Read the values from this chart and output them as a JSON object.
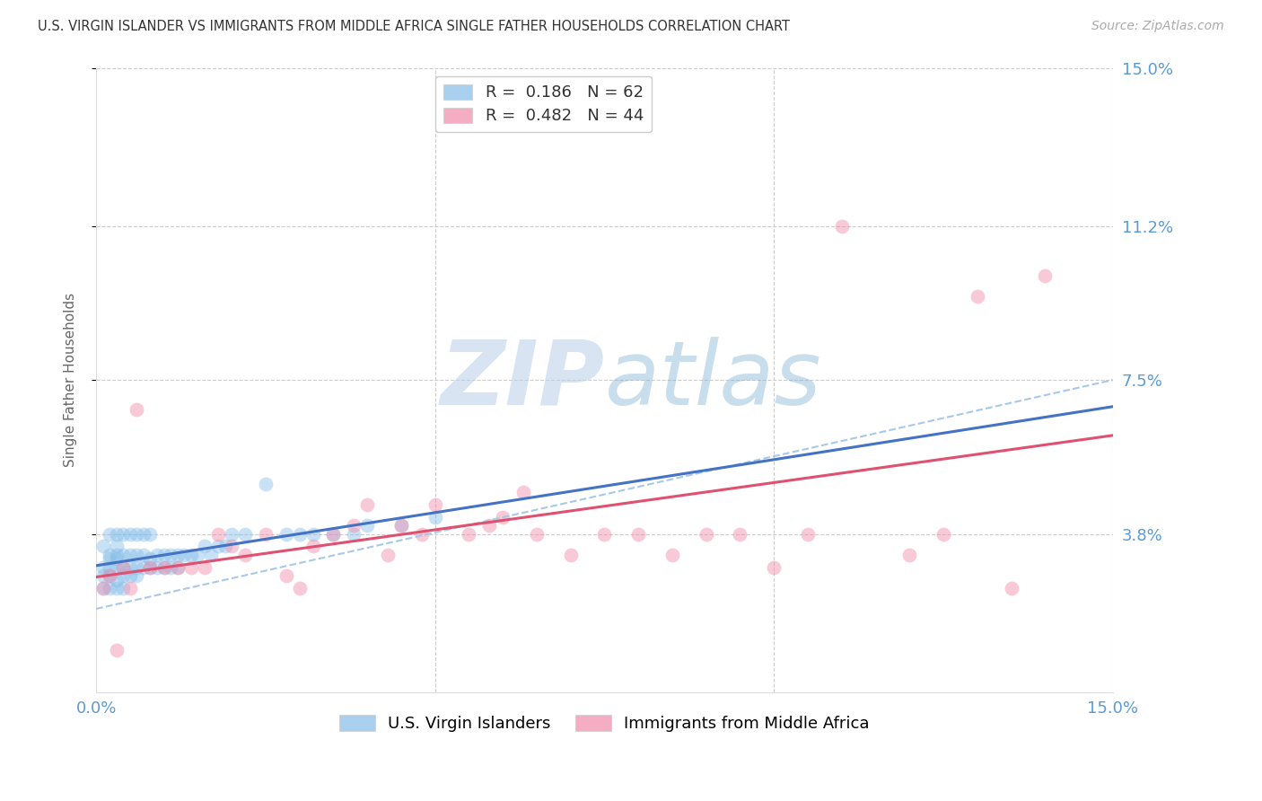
{
  "title": "U.S. VIRGIN ISLANDER VS IMMIGRANTS FROM MIDDLE AFRICA SINGLE FATHER HOUSEHOLDS CORRELATION CHART",
  "source": "Source: ZipAtlas.com",
  "ylabel": "Single Father Households",
  "xlim": [
    0.0,
    0.15
  ],
  "ylim": [
    0.0,
    0.15
  ],
  "ytick_labels_right": [
    "15.0%",
    "11.2%",
    "7.5%",
    "3.8%"
  ],
  "ytick_positions_right": [
    0.15,
    0.112,
    0.075,
    0.038
  ],
  "series1_name": "U.S. Virgin Islanders",
  "series2_name": "Immigrants from Middle Africa",
  "series1_color": "#85bde8",
  "series2_color": "#f08baa",
  "series1_line_color": "#4472c4",
  "series2_line_color": "#e05070",
  "series1_dash_color": "#a8c8e8",
  "series1_R": 0.186,
  "series1_N": 62,
  "series2_R": 0.482,
  "series2_N": 44,
  "watermark_zip": "ZIP",
  "watermark_atlas": "atlas",
  "background_color": "#ffffff",
  "grid_color": "#cccccc",
  "right_tick_color": "#5b9bd5",
  "bottom_tick_color": "#5b9bd5",
  "series1_x": [
    0.001,
    0.001,
    0.001,
    0.001,
    0.002,
    0.002,
    0.002,
    0.002,
    0.002,
    0.002,
    0.003,
    0.003,
    0.003,
    0.003,
    0.003,
    0.003,
    0.003,
    0.004,
    0.004,
    0.004,
    0.004,
    0.004,
    0.005,
    0.005,
    0.005,
    0.005,
    0.006,
    0.006,
    0.006,
    0.006,
    0.007,
    0.007,
    0.007,
    0.008,
    0.008,
    0.008,
    0.009,
    0.009,
    0.01,
    0.01,
    0.011,
    0.011,
    0.012,
    0.012,
    0.013,
    0.014,
    0.015,
    0.016,
    0.017,
    0.018,
    0.019,
    0.02,
    0.022,
    0.025,
    0.028,
    0.03,
    0.032,
    0.035,
    0.038,
    0.04,
    0.045,
    0.05
  ],
  "series1_y": [
    0.025,
    0.028,
    0.03,
    0.035,
    0.025,
    0.028,
    0.03,
    0.032,
    0.033,
    0.038,
    0.025,
    0.027,
    0.03,
    0.032,
    0.033,
    0.035,
    0.038,
    0.025,
    0.028,
    0.03,
    0.033,
    0.038,
    0.028,
    0.03,
    0.033,
    0.038,
    0.028,
    0.03,
    0.033,
    0.038,
    0.03,
    0.033,
    0.038,
    0.03,
    0.032,
    0.038,
    0.03,
    0.033,
    0.03,
    0.033,
    0.03,
    0.033,
    0.03,
    0.033,
    0.033,
    0.033,
    0.033,
    0.035,
    0.033,
    0.035,
    0.035,
    0.038,
    0.038,
    0.05,
    0.038,
    0.038,
    0.038,
    0.038,
    0.038,
    0.04,
    0.04,
    0.042
  ],
  "series2_x": [
    0.001,
    0.002,
    0.003,
    0.004,
    0.005,
    0.006,
    0.008,
    0.01,
    0.012,
    0.014,
    0.016,
    0.018,
    0.02,
    0.022,
    0.025,
    0.028,
    0.03,
    0.032,
    0.035,
    0.038,
    0.04,
    0.043,
    0.045,
    0.048,
    0.05,
    0.055,
    0.058,
    0.06,
    0.063,
    0.065,
    0.07,
    0.075,
    0.08,
    0.085,
    0.09,
    0.095,
    0.1,
    0.105,
    0.11,
    0.12,
    0.125,
    0.13,
    0.135,
    0.14
  ],
  "series2_y": [
    0.025,
    0.028,
    0.01,
    0.03,
    0.025,
    0.068,
    0.03,
    0.03,
    0.03,
    0.03,
    0.03,
    0.038,
    0.035,
    0.033,
    0.038,
    0.028,
    0.025,
    0.035,
    0.038,
    0.04,
    0.045,
    0.033,
    0.04,
    0.038,
    0.045,
    0.038,
    0.04,
    0.042,
    0.048,
    0.038,
    0.033,
    0.038,
    0.038,
    0.033,
    0.038,
    0.038,
    0.03,
    0.038,
    0.112,
    0.033,
    0.038,
    0.095,
    0.025,
    0.1
  ]
}
